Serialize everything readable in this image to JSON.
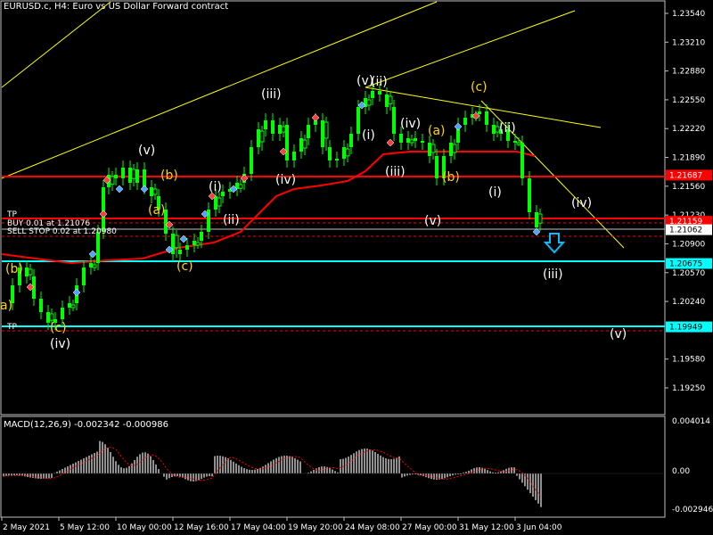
{
  "window": {
    "title": "EURUSD.c, H4:  Euro vs US Dollar Forward contract"
  },
  "colors": {
    "bg": "#000000",
    "grid": "#c0c0c0",
    "bull": "#00ff00",
    "bear": "#00ff00",
    "ma": "#ff0000",
    "trend": "#ffff00",
    "hline_red": "#ff0000",
    "hline_cyan": "#00ffff",
    "wave_white": "#ffffff",
    "wave_yellow": "#ffd700",
    "arrow": "#00bfff",
    "macd_hist": "#c0c0c0",
    "macd_signal": "#ff0000"
  },
  "price_axis": {
    "ticks": [
      "1.23540",
      "1.23210",
      "1.22880",
      "1.22550",
      "1.22220",
      "1.21890",
      "1.21560",
      "1.21230",
      "1.20900",
      "1.20570",
      "1.20240",
      "1.19580",
      "1.19250"
    ],
    "labels": [
      {
        "text": "1.21687",
        "price": 1.21687,
        "bg": "#ff0000",
        "fg": "#ffffff"
      },
      {
        "text": "1.21159",
        "price": 1.21159,
        "bg": "#ff0000",
        "fg": "#ffffff"
      },
      {
        "text": "1.21062",
        "price": 1.21062,
        "bg": "#ffffff",
        "fg": "#000000"
      },
      {
        "text": "1.20675",
        "price": 1.20675,
        "bg": "#00ffff",
        "fg": "#000000"
      },
      {
        "text": "1.19949",
        "price": 1.19949,
        "bg": "#00ffff",
        "fg": "#000000"
      }
    ]
  },
  "time_axis": [
    "2 May 2021",
    "5 May 12:00",
    "10 May 00:00",
    "12 May 16:00",
    "17 May 04:00",
    "19 May 20:00",
    "24 May 08:00",
    "27 May 00:00",
    "31 May 12:00",
    "3 Jun 04:00"
  ],
  "order_labels": {
    "tp": "TP",
    "buy": "BUY 0.01 at 1.21076",
    "sell_stop": "SELL STOP 0.02 at 1.20980",
    "tp2": "TP"
  },
  "waves_white": [
    "(iv)",
    "(v)",
    "(i)",
    "(ii)",
    "(iii)",
    "(iv)",
    "(v)",
    "(i)",
    "(iii)",
    "(iv)",
    "(v)",
    "(i)",
    "(ii)",
    "(iii)",
    "(iv)",
    "(v)",
    "(ii)"
  ],
  "waves_yellow": [
    "(b)",
    "a)",
    "(c)",
    "(b)",
    "(a)",
    "(c)",
    "(a)",
    "(b)",
    "(c)"
  ],
  "macd": {
    "title": "MACD(12,26,9) -0.002342 -0.000986",
    "ticks": [
      "0.004014",
      "0.00",
      "-0.002946"
    ]
  }
}
